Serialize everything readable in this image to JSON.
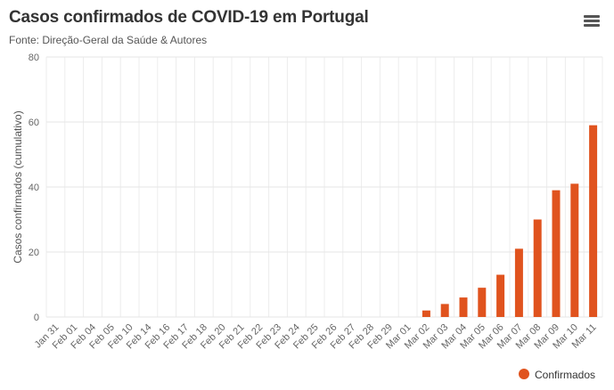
{
  "menu_icon": "hamburger-menu-icon",
  "chart_data": {
    "type": "bar",
    "title": "Casos confirmados de COVID-19 em Portugal",
    "subtitle": "Fonte: Direção-Geral da Saúde & Autores",
    "xlabel": "",
    "ylabel": "Casos confirmados (cumulativo)",
    "ylim": [
      0,
      80
    ],
    "yticks": [
      0,
      20,
      40,
      60,
      80
    ],
    "grid": true,
    "legend_position": "bottom-right",
    "categories": [
      "Jan 31",
      "Feb 01",
      "Feb 04",
      "Feb 05",
      "Feb 10",
      "Feb 14",
      "Feb 16",
      "Feb 17",
      "Feb 18",
      "Feb 20",
      "Feb 21",
      "Feb 22",
      "Feb 23",
      "Feb 24",
      "Feb 25",
      "Feb 26",
      "Feb 27",
      "Feb 28",
      "Feb 29",
      "Mar 01",
      "Mar 02",
      "Mar 03",
      "Mar 04",
      "Mar 05",
      "Mar 06",
      "Mar 07",
      "Mar 08",
      "Mar 09",
      "Mar 10",
      "Mar 11"
    ],
    "series": [
      {
        "name": "Confirmados",
        "color": "#e0531e",
        "values": [
          0,
          0,
          0,
          0,
          0,
          0,
          0,
          0,
          0,
          0,
          0,
          0,
          0,
          0,
          0,
          0,
          0,
          0,
          0,
          0,
          2,
          4,
          6,
          9,
          13,
          21,
          30,
          39,
          41,
          59
        ]
      }
    ]
  }
}
